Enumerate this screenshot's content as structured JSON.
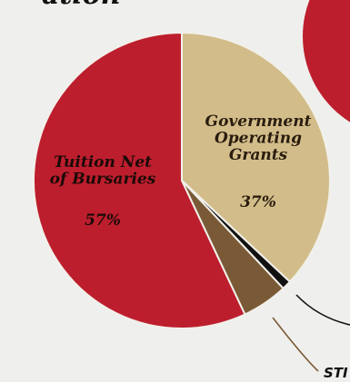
{
  "chart_data": {
    "type": "pie",
    "title_fragment": "ation",
    "slices": [
      {
        "label_lines": [
          "Government",
          "Operating",
          "Grants"
        ],
        "percent_label": "37%",
        "value": 37,
        "color": "#d2bd8a",
        "text_color": "#2a1c0e"
      },
      {
        "label_lines": [],
        "percent_label": "",
        "value": 1,
        "color": "#111111",
        "text_color": "#ffffff"
      },
      {
        "label_lines": [],
        "percent_label": "",
        "value": 5,
        "color": "#7a5a36",
        "text_color": "#ffffff"
      },
      {
        "label_lines": [
          "Tuition Net",
          "of Bursaries"
        ],
        "percent_label": "57%",
        "value": 57,
        "color": "#bd1e2d",
        "text_color": "#1a0a08"
      }
    ],
    "callout_text": "STI",
    "second_pie_color": "#bd1e2d"
  }
}
